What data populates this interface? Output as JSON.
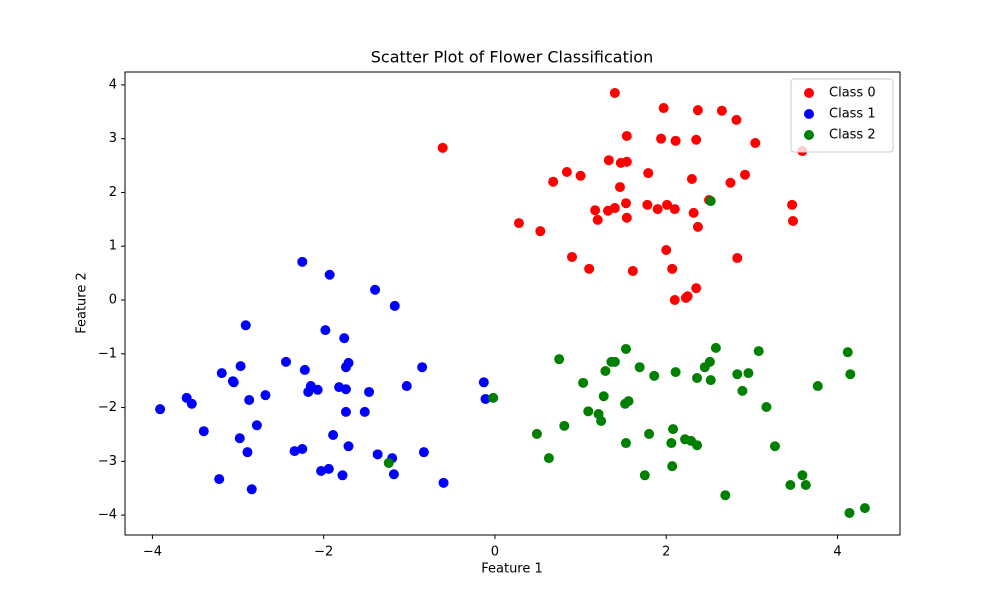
{
  "chart_data": {
    "type": "scatter",
    "title": "Scatter Plot of Flower Classification",
    "x_label": "Feature 1",
    "y_label": "Feature 2",
    "xlim": [
      -4.32,
      4.73
    ],
    "ylim": [
      -4.37,
      4.24
    ],
    "xticks": [
      {
        "value": -4,
        "label": "−4"
      },
      {
        "value": -2,
        "label": "−2"
      },
      0,
      2,
      4
    ],
    "yticks": [
      {
        "value": -4,
        "label": "−4"
      },
      {
        "value": -3,
        "label": "−3"
      },
      {
        "value": -2,
        "label": "−2"
      },
      {
        "value": -1,
        "label": "−1"
      },
      0,
      1,
      2,
      3,
      4
    ],
    "legend": "upper right",
    "series": [
      {
        "name": "Class 0",
        "color": "#ff0000",
        "x": [
          -0.61,
          1.4,
          1.97,
          2.37,
          2.65,
          2.82,
          1.54,
          1.33,
          1.94,
          2.11,
          2.35,
          3.04,
          3.59,
          0.68,
          0.84,
          1.0,
          1.47,
          1.54,
          1.46,
          1.79,
          2.3,
          2.92,
          2.75,
          2.5,
          3.47,
          0.28,
          0.53,
          1.17,
          1.32,
          1.4,
          1.53,
          1.54,
          1.2,
          1.78,
          1.9,
          2.01,
          2.1,
          2.32,
          2.37,
          3.48,
          0.9,
          2.0,
          1.1,
          1.61,
          2.07,
          2.83,
          2.1,
          2.23,
          2.25,
          2.35
        ],
        "values": [
          2.83,
          3.85,
          3.57,
          3.53,
          3.52,
          3.35,
          3.05,
          2.6,
          3.0,
          2.96,
          2.98,
          2.92,
          2.77,
          2.2,
          2.38,
          2.31,
          2.55,
          2.57,
          2.1,
          2.36,
          2.25,
          2.33,
          2.18,
          1.86,
          1.77,
          1.43,
          1.28,
          1.67,
          1.66,
          1.71,
          1.8,
          1.53,
          1.49,
          1.77,
          1.69,
          1.77,
          1.69,
          1.62,
          1.36,
          1.47,
          0.8,
          0.93,
          0.58,
          0.54,
          0.58,
          0.78,
          0.0,
          0.04,
          0.07,
          0.22
        ]
      },
      {
        "name": "Class 1",
        "color": "#0000ff",
        "x": [
          -2.25,
          -1.93,
          -1.4,
          -1.17,
          -2.91,
          -1.98,
          -1.76,
          -2.44,
          -2.22,
          -1.71,
          -1.74,
          -2.97,
          -3.19,
          -3.06,
          -3.05,
          -0.85,
          -2.15,
          -2.18,
          -2.07,
          -1.82,
          -1.74,
          -1.47,
          -1.03,
          -2.68,
          -3.6,
          -3.54,
          -3.91,
          -2.87,
          -1.74,
          -1.52,
          -2.78,
          -3.4,
          -2.98,
          -1.89,
          -1.71,
          -2.25,
          -2.34,
          -2.89,
          -0.83,
          -1.37,
          -1.2,
          -1.94,
          -2.03,
          -1.78,
          -1.18,
          -3.22,
          -2.84,
          -0.6,
          -0.13,
          -0.11
        ],
        "values": [
          0.71,
          0.47,
          0.19,
          -0.11,
          -0.47,
          -0.56,
          -0.71,
          -1.15,
          -1.3,
          -1.17,
          -1.25,
          -1.23,
          -1.36,
          -1.51,
          -1.53,
          -1.25,
          -1.6,
          -1.71,
          -1.67,
          -1.62,
          -1.66,
          -1.71,
          -1.6,
          -1.77,
          -1.82,
          -1.93,
          -2.03,
          -1.86,
          -2.08,
          -2.08,
          -2.33,
          -2.44,
          -2.57,
          -2.51,
          -2.72,
          -2.77,
          -2.81,
          -2.83,
          -2.83,
          -2.87,
          -2.94,
          -3.14,
          -3.18,
          -3.26,
          -3.24,
          -3.33,
          -3.52,
          -3.4,
          -1.53,
          -1.84
        ]
      },
      {
        "name": "Class 2",
        "color": "#008000",
        "x": [
          2.52,
          2.58,
          3.08,
          4.12,
          1.53,
          1.36,
          1.4,
          0.75,
          1.69,
          2.51,
          2.45,
          1.29,
          2.11,
          1.86,
          2.36,
          2.52,
          2.83,
          2.96,
          4.15,
          1.03,
          3.77,
          1.27,
          2.89,
          -0.02,
          1.56,
          1.52,
          3.17,
          1.09,
          1.21,
          1.24,
          0.81,
          0.49,
          1.8,
          2.08,
          2.22,
          2.29,
          2.36,
          1.53,
          2.06,
          3.27,
          0.63,
          2.07,
          1.75,
          3.59,
          -1.24,
          3.45,
          3.63,
          2.69,
          4.14,
          4.32
        ],
        "values": [
          1.84,
          -0.89,
          -0.95,
          -0.97,
          -0.91,
          -1.15,
          -1.15,
          -1.1,
          -1.25,
          -1.15,
          -1.25,
          -1.32,
          -1.34,
          -1.41,
          -1.45,
          -1.49,
          -1.38,
          -1.36,
          -1.38,
          -1.54,
          -1.6,
          -1.79,
          -1.69,
          -1.82,
          -1.88,
          -1.93,
          -1.99,
          -2.07,
          -2.12,
          -2.25,
          -2.34,
          -2.49,
          -2.49,
          -2.4,
          -2.59,
          -2.62,
          -2.7,
          -2.66,
          -2.66,
          -2.72,
          -2.94,
          -3.09,
          -3.26,
          -3.26,
          -3.03,
          -3.44,
          -3.44,
          -3.63,
          -3.96,
          -3.87
        ]
      }
    ]
  }
}
